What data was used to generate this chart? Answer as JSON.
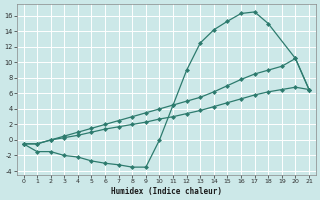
{
  "xlabel": "Humidex (Indice chaleur)",
  "background_color": "#cce8e8",
  "line_color": "#2d7b6e",
  "grid_color": "#b8d8d8",
  "xlim": [
    -0.5,
    21.5
  ],
  "ylim": [
    -4.5,
    17.5
  ],
  "xticks": [
    0,
    1,
    2,
    3,
    4,
    5,
    6,
    7,
    8,
    9,
    10,
    11,
    12,
    13,
    14,
    15,
    16,
    17,
    18,
    19,
    20,
    21
  ],
  "yticks": [
    -4,
    -2,
    0,
    2,
    4,
    6,
    8,
    10,
    12,
    14,
    16
  ],
  "line1_x": [
    0,
    1,
    2,
    3,
    4,
    5,
    6,
    7,
    8,
    9,
    10,
    11,
    12,
    13,
    14,
    15,
    16,
    17,
    18,
    20,
    21
  ],
  "line1_y": [
    -0.5,
    -1.5,
    -1.5,
    -2.0,
    -2.2,
    -2.7,
    -3.0,
    -3.2,
    -3.5,
    -3.5,
    0.0,
    4.5,
    9.0,
    12.5,
    14.2,
    15.3,
    16.3,
    16.5,
    15.0,
    10.5,
    6.5
  ],
  "line2_x": [
    0,
    1,
    2,
    3,
    4,
    5,
    6,
    7,
    8,
    9,
    10,
    11,
    12,
    13,
    14,
    15,
    16,
    17,
    18,
    19,
    20,
    21
  ],
  "line2_y": [
    -0.5,
    -0.5,
    0.0,
    0.5,
    1.0,
    1.5,
    2.0,
    2.5,
    3.0,
    3.5,
    4.0,
    4.5,
    5.0,
    5.5,
    6.2,
    7.0,
    7.8,
    8.5,
    9.0,
    9.5,
    10.5,
    6.5
  ],
  "line3_x": [
    0,
    1,
    2,
    3,
    4,
    5,
    6,
    7,
    8,
    9,
    10,
    11,
    12,
    13,
    14,
    15,
    16,
    17,
    18,
    19,
    20,
    21
  ],
  "line3_y": [
    -0.5,
    -0.5,
    0.0,
    0.3,
    0.6,
    1.0,
    1.4,
    1.7,
    2.0,
    2.3,
    2.7,
    3.0,
    3.4,
    3.8,
    4.3,
    4.8,
    5.3,
    5.8,
    6.2,
    6.5,
    6.8,
    6.5
  ]
}
